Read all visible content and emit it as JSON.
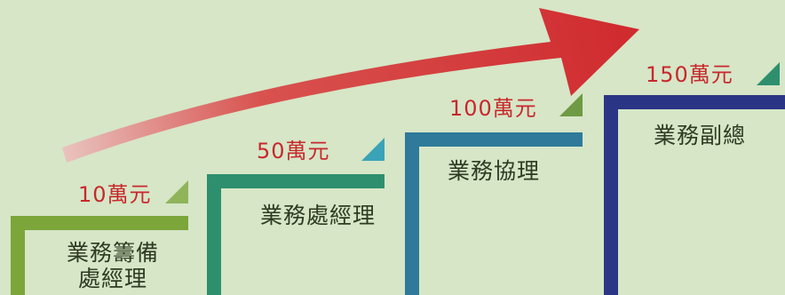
{
  "colors": {
    "background": "#d6e6c7",
    "amount_text": "#c8282c",
    "role_text": "#2e3a22",
    "arrow": "#d02a2e"
  },
  "steps": [
    {
      "amount": "10萬元",
      "role_line1": "業務籌備",
      "role_line2": "處經理",
      "color": "#7ca63a",
      "triangle_color": "#8fb45a"
    },
    {
      "amount": "50萬元",
      "role_line1": "業務處經理",
      "color": "#2e8f6e",
      "triangle_color": "#3aa3b8"
    },
    {
      "amount": "100萬元",
      "role_line1": "業務協理",
      "color": "#2f7a9a",
      "triangle_color": "#6f9a44"
    },
    {
      "amount": "150萬元",
      "role_line1": "業務副總",
      "color": "#2b3585",
      "triangle_color": "#2e8f6e"
    }
  ],
  "arrow": {
    "icon": "growth-arrow-icon"
  }
}
